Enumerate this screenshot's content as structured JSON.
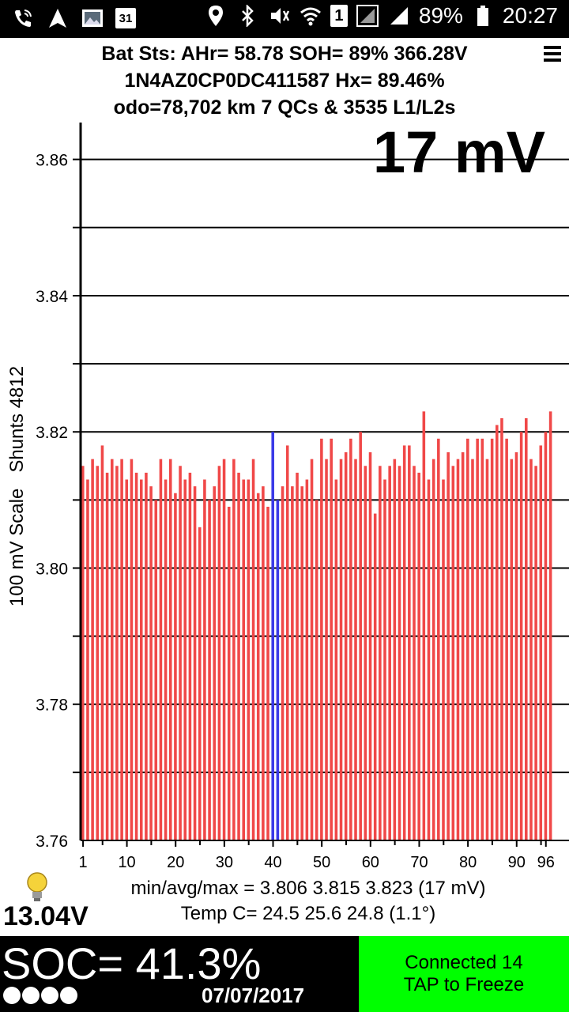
{
  "statusbar": {
    "icons_left": [
      "phone-wifi-icon",
      "navigation-icon",
      "photo-icon",
      "calendar-icon"
    ],
    "calendar_day": "31",
    "sim_badge": "1",
    "battery": "89%",
    "time": "20:27"
  },
  "header": {
    "line1": "Bat Sts: AHr= 58.78 SOH= 89% 366.28V",
    "line2": "1N4AZ0CP0DC411587   Hx= 89.46%",
    "line3": "odo=78,702 km 7 QCs & 3535 L1/L2s"
  },
  "big_delta": "17 mV",
  "y_axis_label": "100 mV Scale   Shunts 4812",
  "chart_data": {
    "type": "bar",
    "ylim": [
      3.76,
      3.866
    ],
    "yticks": [
      "3.76",
      "3.78",
      "3.80",
      "3.82",
      "3.84",
      "3.86"
    ],
    "xticks": [
      "1",
      "10",
      "20",
      "30",
      "40",
      "50",
      "60",
      "70",
      "80",
      "90",
      "96"
    ],
    "bar_color": "#f04848",
    "highlight_color": "#3a3ae8",
    "highlight_cells": [
      40,
      41
    ],
    "values": [
      3.815,
      3.813,
      3.816,
      3.815,
      3.818,
      3.814,
      3.816,
      3.815,
      3.816,
      3.813,
      3.816,
      3.814,
      3.813,
      3.814,
      3.812,
      3.81,
      3.816,
      3.813,
      3.816,
      3.811,
      3.815,
      3.813,
      3.814,
      3.812,
      3.806,
      3.813,
      3.81,
      3.812,
      3.815,
      3.816,
      3.809,
      3.816,
      3.814,
      3.813,
      3.813,
      3.816,
      3.811,
      3.812,
      3.809,
      3.82,
      3.81,
      3.812,
      3.818,
      3.812,
      3.814,
      3.812,
      3.813,
      3.816,
      3.81,
      3.819,
      3.816,
      3.819,
      3.813,
      3.816,
      3.817,
      3.819,
      3.816,
      3.82,
      3.815,
      3.817,
      3.808,
      3.815,
      3.813,
      3.815,
      3.816,
      3.815,
      3.818,
      3.818,
      3.815,
      3.814,
      3.823,
      3.813,
      3.816,
      3.819,
      3.813,
      3.817,
      3.815,
      3.816,
      3.817,
      3.819,
      3.816,
      3.819,
      3.819,
      3.816,
      3.819,
      3.821,
      3.822,
      3.819,
      3.816,
      3.817,
      3.82,
      3.822,
      3.816,
      3.815,
      3.818,
      3.82,
      3.823
    ]
  },
  "stats": {
    "minavgmax": "min/avg/max = 3.806  3.815  3.823  (17 mV)",
    "temp": "Temp C= 24.5  25.6  24.8  (1.1°)"
  },
  "aux_voltage": "13.04V",
  "soc": "SOC= 41.3%",
  "date": "07/07/2017",
  "connect_button": {
    "line1": "Connected 14",
    "line2": "TAP to Freeze",
    "color": "#00ff00"
  }
}
